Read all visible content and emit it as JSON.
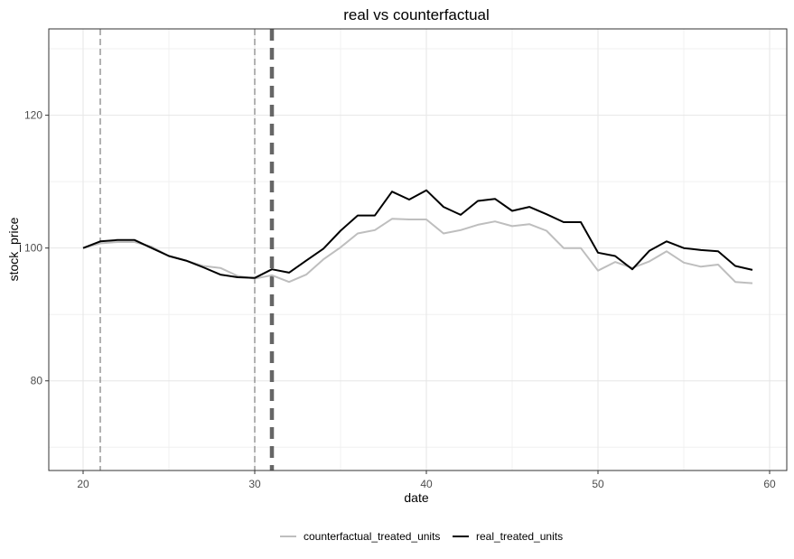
{
  "chart_data": {
    "type": "line",
    "title": "real vs counterfactual",
    "xlabel": "date",
    "ylabel": "stock_price",
    "xlim": [
      18.0,
      61.0
    ],
    "ylim": [
      66.5,
      133.0
    ],
    "x_ticks": [
      20,
      30,
      40,
      50,
      60
    ],
    "y_ticks": [
      80,
      100,
      120
    ],
    "grid": true,
    "legend_position": "bottom",
    "x": [
      20,
      21,
      22,
      23,
      24,
      25,
      26,
      27,
      28,
      29,
      30,
      31,
      32,
      33,
      34,
      35,
      36,
      37,
      38,
      39,
      40,
      41,
      42,
      43,
      44,
      45,
      46,
      47,
      48,
      49,
      50,
      51,
      52,
      53,
      54,
      55,
      56,
      57,
      58,
      59
    ],
    "series": [
      {
        "name": "counterfactual_treated_units",
        "color": "#bebebe",
        "values": [
          100.0,
          100.7,
          100.9,
          100.9,
          100.2,
          98.8,
          98.1,
          97.3,
          97.0,
          95.8,
          95.4,
          95.9,
          94.9,
          96.0,
          98.3,
          100.1,
          102.2,
          102.7,
          104.4,
          104.3,
          104.3,
          102.2,
          102.7,
          103.5,
          104.0,
          103.3,
          103.6,
          102.6,
          100.0,
          100.0,
          96.6,
          97.9,
          97.0,
          98.0,
          99.5,
          97.8,
          97.2,
          97.5,
          94.9,
          94.7
        ]
      },
      {
        "name": "real_treated_units",
        "color": "#000000",
        "values": [
          100.0,
          101.0,
          101.2,
          101.2,
          100.0,
          98.8,
          98.1,
          97.1,
          96.0,
          95.6,
          95.5,
          96.8,
          96.3,
          98.1,
          99.9,
          102.6,
          104.9,
          104.9,
          108.5,
          107.3,
          108.7,
          106.2,
          105.0,
          107.1,
          107.4,
          105.6,
          106.2,
          105.1,
          103.9,
          103.9,
          99.3,
          98.8,
          96.8,
          99.6,
          101.0,
          100.0,
          99.7,
          99.5,
          97.3,
          96.7
        ]
      }
    ],
    "vlines": [
      {
        "x": 21.0,
        "style": "thin-dashed",
        "color": "#7f7f7f"
      },
      {
        "x": 30.0,
        "style": "thin-dashed",
        "color": "#7f7f7f"
      },
      {
        "x": 31.0,
        "style": "thick-dashed",
        "color": "#666666"
      }
    ]
  }
}
